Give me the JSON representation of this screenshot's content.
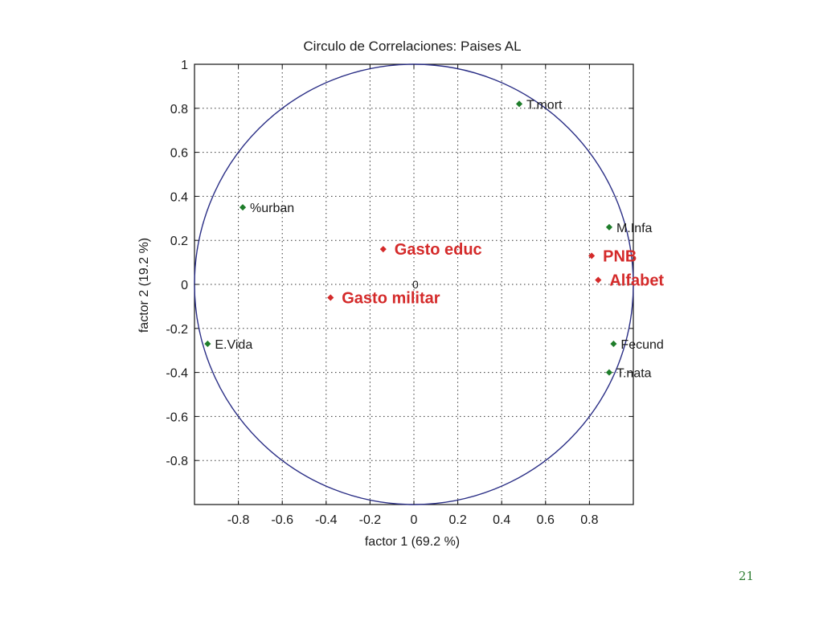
{
  "page_number": "21",
  "colors": {
    "circle": "#2b2f86",
    "primary_point": "#d42a2a",
    "secondary_point": "#1e7d2a",
    "grid": "#333333",
    "page_number": "#2e7d32"
  },
  "chart_data": {
    "type": "scatter",
    "title": "Circulo de Correlaciones: Paises AL",
    "xlabel": "factor  1  (69.2 %)",
    "ylabel": "factor  2  (19.2 %)",
    "xlim": [
      -1,
      1
    ],
    "ylim": [
      -1,
      1
    ],
    "xticks": [
      -0.8,
      -0.6,
      -0.4,
      -0.2,
      0,
      0.2,
      0.4,
      0.6,
      0.8
    ],
    "yticks": [
      -0.8,
      -0.6,
      -0.4,
      -0.2,
      0,
      0.2,
      0.4,
      0.6,
      0.8,
      1
    ],
    "xtick_labels": [
      "-0.8",
      "-0.6",
      "-0.4",
      "-0.2",
      "0",
      "0.2",
      "0.4",
      "0.6",
      "0.8"
    ],
    "ytick_labels": [
      "-0.8",
      "-0.6",
      "-0.4",
      "-0.2",
      "0",
      "0.2",
      "0.4",
      "0.6",
      "0.8",
      "1"
    ],
    "grid": true,
    "grid_style": "dotted",
    "unit_circle": true,
    "origin_label": "0",
    "series": [
      {
        "name": "",
        "style": "primary",
        "points": [
          {
            "label": "Gasto educ",
            "x": -0.14,
            "y": 0.16
          },
          {
            "label": "PNB",
            "x": 0.81,
            "y": 0.13
          },
          {
            "label": "Alfabet",
            "x": 0.84,
            "y": 0.02
          },
          {
            "label": "Gasto militar",
            "x": -0.38,
            "y": -0.06
          }
        ]
      },
      {
        "name": "",
        "style": "secondary",
        "points": [
          {
            "label": "T.mort",
            "x": 0.48,
            "y": 0.82
          },
          {
            "label": "%urban",
            "x": -0.78,
            "y": 0.35
          },
          {
            "label": "M.Infa",
            "x": 0.89,
            "y": 0.26
          },
          {
            "label": "E.Vida",
            "x": -0.94,
            "y": -0.27
          },
          {
            "label": "Fecund",
            "x": 0.91,
            "y": -0.27
          },
          {
            "label": "T.nata",
            "x": 0.89,
            "y": -0.4
          }
        ]
      }
    ]
  }
}
